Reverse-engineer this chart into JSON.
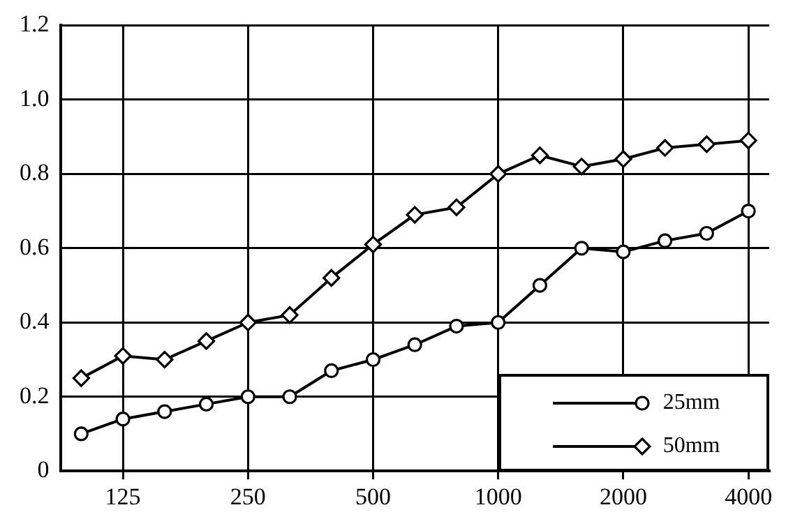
{
  "chart_data": {
    "type": "line",
    "categories": [
      null,
      "125",
      null,
      null,
      "250",
      null,
      null,
      "500",
      null,
      null,
      "1000",
      null,
      null,
      "2000",
      null,
      null,
      "4000"
    ],
    "ylim": [
      0,
      1.2
    ],
    "yticks": [
      0,
      0.2,
      0.4,
      0.6,
      0.8,
      {
        "value": 1.0,
        "label": "1.0"
      },
      1.2
    ],
    "grid": true,
    "legend": "bottom right",
    "line_style": "solid",
    "series": [
      {
        "name": "25mm",
        "color": "#000000",
        "marker": "circle",
        "values": [
          0.1,
          0.14,
          0.16,
          0.18,
          0.2,
          0.2,
          0.27,
          0.3,
          0.34,
          0.39,
          0.4,
          0.5,
          0.6,
          0.59,
          0.62,
          0.64,
          0.7
        ]
      },
      {
        "name": "50mm",
        "color": "#000000",
        "marker": "diamond",
        "values": [
          0.25,
          0.31,
          0.3,
          0.35,
          0.4,
          0.42,
          0.52,
          0.61,
          0.69,
          0.71,
          0.8,
          0.85,
          0.82,
          0.84,
          0.87,
          0.88,
          0.89
        ]
      }
    ]
  }
}
